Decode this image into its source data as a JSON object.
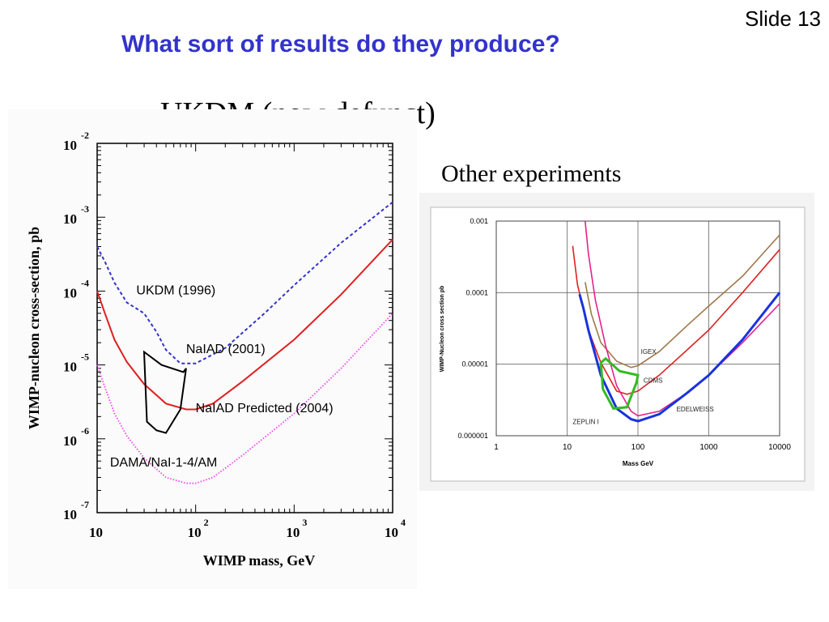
{
  "slide": {
    "number_label": "Slide 13",
    "title": "What sort of results do they produce?",
    "left_heading": "UKDM (now defunct)",
    "right_heading": "Other experiments"
  },
  "colors": {
    "title": "#3333cc",
    "ukdm_1996": "#3333cc",
    "naiad_2001": "#e02020",
    "naiad_predicted": "#ee44ee",
    "dama": "#000000",
    "cdms": "#ffffff",
    "igex": "#a0784a",
    "edelweiss": "#e8208c",
    "zeplin": "#1a33dd",
    "dama_green": "#33bb22",
    "red_curve": "#dd2222"
  },
  "chart_data": [
    {
      "type": "line",
      "xlabel": "WIMP mass, GeV",
      "ylabel": "WIMP-nucleon cross-section, pb",
      "xscale": "log",
      "yscale": "log",
      "xlim": [
        10,
        10000
      ],
      "ylim": [
        1e-07,
        0.01
      ],
      "x_ticks": [
        {
          "base": "10",
          "exp": ""
        },
        {
          "base": "10",
          "exp": "2"
        },
        {
          "base": "10",
          "exp": "3"
        },
        {
          "base": "10",
          "exp": "4"
        }
      ],
      "y_ticks": [
        {
          "base": "10",
          "exp": "-7"
        },
        {
          "base": "10",
          "exp": "-6"
        },
        {
          "base": "10",
          "exp": "-5"
        },
        {
          "base": "10",
          "exp": "-4"
        },
        {
          "base": "10",
          "exp": "-3"
        },
        {
          "base": "10",
          "exp": "-2"
        }
      ],
      "series": [
        {
          "name": "UKDM (1996)",
          "style": "dashed",
          "color": "#3333cc",
          "x": [
            10,
            12,
            15,
            20,
            30,
            40,
            50,
            70,
            100,
            200,
            500,
            1000,
            3000,
            10000
          ],
          "y": [
            0.0004,
            0.00025,
            0.00013,
            7e-05,
            5e-05,
            2.8e-05,
            1.6e-05,
            1.05e-05,
            1.05e-05,
            1.7e-05,
            5e-05,
            0.00012,
            0.00045,
            0.0016
          ]
        },
        {
          "name": "NaIAD (2001)",
          "style": "solid",
          "color": "#e02020",
          "x": [
            10,
            12,
            15,
            20,
            30,
            50,
            80,
            100,
            150,
            300,
            1000,
            3000,
            10000
          ],
          "y": [
            0.0001,
            5e-05,
            2.2e-05,
            1.1e-05,
            5.5e-06,
            3e-06,
            2.5e-06,
            2.5e-06,
            3e-06,
            6e-06,
            2.2e-05,
            9e-05,
            0.0005
          ]
        },
        {
          "name": "NaIAD Predicted (2004)",
          "style": "dotted",
          "color": "#ee44ee",
          "x": [
            10,
            12,
            15,
            20,
            30,
            50,
            80,
            100,
            150,
            300,
            1000,
            3000,
            10000
          ],
          "y": [
            1e-05,
            5e-06,
            2.2e-06,
            1.1e-06,
            5.5e-07,
            3e-07,
            2.5e-07,
            2.5e-07,
            3e-07,
            6e-07,
            2.2e-06,
            9e-06,
            5e-05
          ]
        },
        {
          "name": "DAMA/NaI-1-4/AM",
          "style": "closed",
          "color": "#000000",
          "x": [
            30,
            45,
            75,
            80,
            70,
            50,
            40,
            32,
            30
          ],
          "y": [
            1.5e-05,
            1e-05,
            8e-06,
            9e-06,
            2.5e-06,
            1.2e-06,
            1.3e-06,
            1.7e-06,
            1.5e-05
          ]
        }
      ],
      "labels": [
        {
          "text": "UKDM (1996)"
        },
        {
          "text": "NaIAD (2001)"
        },
        {
          "text": "NaIAD Predicted (2004)"
        },
        {
          "text": "DAMA/NaI-1-4/AM"
        }
      ]
    },
    {
      "type": "line",
      "xlabel": "Mass GeV",
      "ylabel": "WIMP-Nucleon cross section pb",
      "xscale": "log",
      "yscale": "log",
      "xlim": [
        1,
        10000
      ],
      "ylim": [
        1e-06,
        0.001
      ],
      "x_ticks": [
        "1",
        "10",
        "100",
        "1000",
        "10000"
      ],
      "y_ticks": [
        "0.000001",
        "0.00001",
        "0.0001",
        "0.001"
      ],
      "grid": true,
      "series": [
        {
          "name": "IGEX",
          "color": "#a0784a",
          "x": [
            18,
            22,
            30,
            50,
            80,
            100,
            200,
            500,
            1000,
            3000,
            10000
          ],
          "y": [
            0.00014,
            5e-05,
            2e-05,
            1.1e-05,
            9e-06,
            9.5e-06,
            1.5e-05,
            3.5e-05,
            6.5e-05,
            0.00017,
            0.00064
          ]
        },
        {
          "name": "red",
          "color": "#dd2222",
          "x": [
            12,
            14,
            20,
            30,
            50,
            70,
            100,
            200,
            500,
            1000,
            3000,
            10000
          ],
          "y": [
            0.00045,
            0.00013,
            3e-05,
            1.05e-05,
            4.2e-06,
            3.8e-06,
            4.2e-06,
            7e-06,
            1.6e-05,
            3e-05,
            0.0001,
            0.0004
          ]
        },
        {
          "name": "EDELWEISS",
          "color": "#e8208c",
          "x": [
            18,
            20,
            25,
            35,
            50,
            80,
            100,
            200,
            500,
            1000,
            3000,
            10000
          ],
          "y": [
            0.001,
            0.00035,
            8e-05,
            1.8e-05,
            5e-06,
            2.2e-06,
            1.9e-06,
            2.2e-06,
            4e-06,
            7e-06,
            2e-05,
            7e-05
          ]
        },
        {
          "name": "ZEPLIN I",
          "color": "#1a33dd",
          "x": [
            15,
            17,
            20,
            30,
            50,
            80,
            100,
            200,
            500,
            1000,
            3000,
            10000
          ],
          "y": [
            9.5e-05,
            6e-05,
            3e-05,
            7e-06,
            2.4e-06,
            1.7e-06,
            1.6e-06,
            2e-06,
            4e-06,
            7e-06,
            2.2e-05,
            0.0001
          ]
        },
        {
          "name": "DAMA",
          "color": "#33bb22",
          "x": [
            30,
            35,
            55,
            100,
            95,
            70,
            45,
            32,
            30
          ],
          "y": [
            1.05e-05,
            1.2e-05,
            8e-06,
            7e-06,
            5.5e-06,
            2.5e-06,
            2.4e-06,
            4.5e-06,
            1.05e-05
          ]
        }
      ],
      "labels": [
        {
          "text": "IGEX"
        },
        {
          "text": "CDMS"
        },
        {
          "text": "EDELWEISS"
        },
        {
          "text": "ZEPLIN I"
        }
      ]
    }
  ]
}
